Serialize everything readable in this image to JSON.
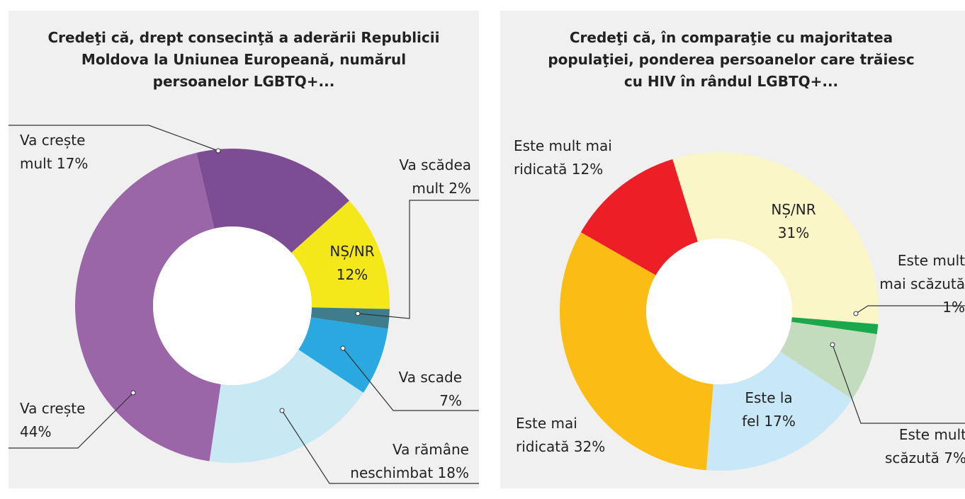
{
  "chart_data": [
    {
      "type": "pie",
      "donut": true,
      "title": "Credeţi că, drept consecinţă a aderării Republicii Moldova la Uniunea Europeană, numărul persoanelor LGBTQ+...",
      "categories": [
        "NȘ/NR",
        "Va scădea mult",
        "Va scade",
        "Va rămâne neschimbat",
        "Va crește",
        "Va crește mult"
      ],
      "values": [
        12,
        2,
        7,
        18,
        44,
        17
      ],
      "value_labels": [
        "12%",
        "2%",
        "7%",
        "18%",
        "44%",
        "17%"
      ],
      "colors": [
        "#f5e81a",
        "#3e7d8c",
        "#2aa8e0",
        "#c8e8f4",
        "#9b66a8",
        "#7d4d94"
      ]
    },
    {
      "type": "pie",
      "donut": true,
      "title": "Credeţi că, în comparaţie cu majoritatea populaţiei, ponderea persoanelor care trăiesc cu HIV în rândul LGBTQ+...",
      "categories": [
        "NȘ/NR",
        "Este mult mai scăzută",
        "Este mult scăzută",
        "Este la fel",
        "Este mai ridicată",
        "Este mult mai ridicată"
      ],
      "values": [
        31,
        1,
        7,
        17,
        32,
        12
      ],
      "value_labels": [
        "31%",
        "1%",
        "7%",
        "17%",
        "32%",
        "12%"
      ],
      "colors": [
        "#fbf6c8",
        "#1aa84a",
        "#c3dcbe",
        "#c8e7f7",
        "#fbbd14",
        "#ec1f27"
      ]
    }
  ]
}
